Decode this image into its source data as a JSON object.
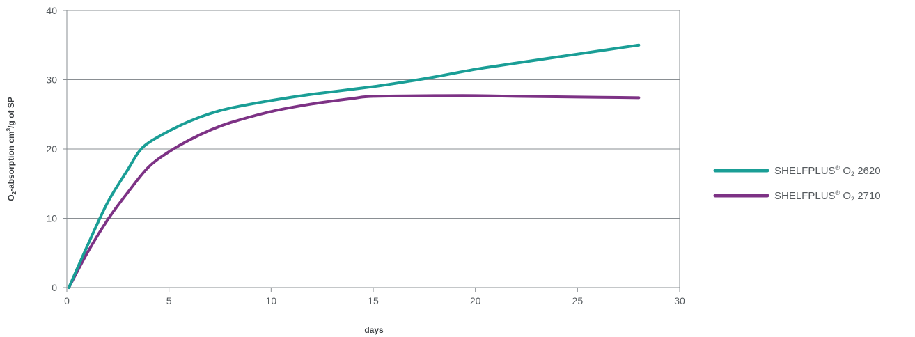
{
  "chart_data": {
    "type": "line",
    "title": "",
    "xlabel": "days",
    "ylabel": {
      "pre": "O",
      "sub": "2",
      "mid": "-absorption cm",
      "sup": "3",
      "post": "/g of SP"
    },
    "xlim": [
      0,
      30
    ],
    "ylim": [
      0,
      40
    ],
    "xticks": [
      0,
      5,
      10,
      15,
      20,
      25,
      30
    ],
    "yticks": [
      0,
      10,
      20,
      30,
      40
    ],
    "grid": "horizontal",
    "legend_position": "right",
    "series": [
      {
        "name": "SHELFPLUS® O2 2620",
        "legend": {
          "brand": "SHELFPLUS",
          "reg": "®",
          "pre": " O",
          "sub": "2",
          "post": " 2620"
        },
        "color": "#1a9e96",
        "points": [
          [
            0.1,
            0
          ],
          [
            1.0,
            6.0
          ],
          [
            2.0,
            12.3
          ],
          [
            3.0,
            17.1
          ],
          [
            3.5,
            19.5
          ],
          [
            4.0,
            20.9
          ],
          [
            5.0,
            22.6
          ],
          [
            6.0,
            24.0
          ],
          [
            7.0,
            25.1
          ],
          [
            8.0,
            25.9
          ],
          [
            10.0,
            27.0
          ],
          [
            12.0,
            27.9
          ],
          [
            15.0,
            29.0
          ],
          [
            17.0,
            29.9
          ],
          [
            18.0,
            30.4
          ],
          [
            20.0,
            31.5
          ],
          [
            22.0,
            32.4
          ],
          [
            25.0,
            33.7
          ],
          [
            28.0,
            35.0
          ]
        ]
      },
      {
        "name": "SHELFPLUS® O2 2710",
        "legend": {
          "brand": "SHELFPLUS",
          "reg": "®",
          "pre": " O",
          "sub": "2",
          "post": " 2710"
        },
        "color": "#7d3285",
        "points": [
          [
            0.1,
            0
          ],
          [
            1.0,
            5.0
          ],
          [
            2.0,
            9.8
          ],
          [
            3.0,
            13.8
          ],
          [
            4.0,
            17.4
          ],
          [
            5.0,
            19.6
          ],
          [
            6.0,
            21.3
          ],
          [
            7.0,
            22.7
          ],
          [
            8.0,
            23.8
          ],
          [
            10.0,
            25.4
          ],
          [
            12.0,
            26.5
          ],
          [
            14.0,
            27.3
          ],
          [
            15.0,
            27.6
          ],
          [
            18.0,
            27.7
          ],
          [
            20.0,
            27.7
          ],
          [
            22.0,
            27.6
          ],
          [
            25.0,
            27.5
          ],
          [
            28.0,
            27.4
          ]
        ]
      }
    ]
  }
}
